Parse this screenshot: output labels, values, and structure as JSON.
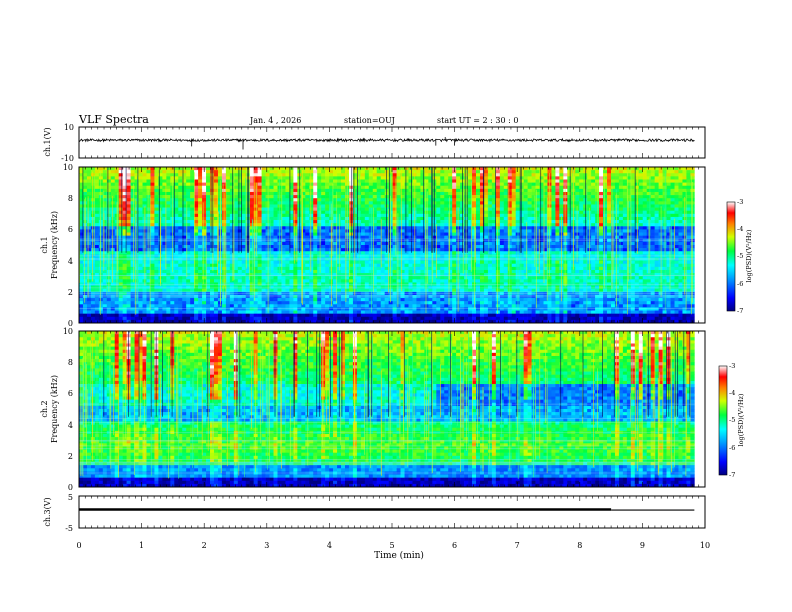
{
  "header": {
    "title": "VLF Spectra",
    "date": "Jan. 4 , 2026",
    "station": "station=OUJ",
    "start": "start UT =  2 : 30 : 0"
  },
  "chart_data": [
    {
      "type": "line",
      "name": "ch1-waveform",
      "ylabel": "ch.1(V)",
      "ylim": [
        -10,
        10
      ],
      "yticks": [
        "10",
        "-10"
      ],
      "baseline": 1.5,
      "spikes": [
        {
          "t": 1.8,
          "v": -2.5
        },
        {
          "t": 2.62,
          "v": -4.5
        },
        {
          "t": 4.55,
          "v": 3.0
        },
        {
          "t": 5.7,
          "v": -2.0
        },
        {
          "t": 5.85,
          "v": 3.5
        },
        {
          "t": 6.0,
          "v": -2.0
        }
      ]
    },
    {
      "type": "heatmap",
      "name": "ch1-spectrogram",
      "ylabel_line1": "ch.1",
      "ylabel_line2": "Frequency (kHz)",
      "ylim": [
        0,
        10
      ],
      "yticks": [
        "0",
        "2",
        "4",
        "6",
        "8",
        "10"
      ],
      "colorbar": {
        "label": "log(PSD)(V²/Hz)",
        "range": [
          -7,
          -3
        ],
        "ticks": [
          "-3",
          "-4",
          "-5",
          "-6",
          "-7"
        ]
      }
    },
    {
      "type": "heatmap",
      "name": "ch2-spectrogram",
      "ylabel_line1": "ch.2",
      "ylabel_line2": "Frequency (kHz)",
      "ylim": [
        0,
        10
      ],
      "yticks": [
        "0",
        "2",
        "4",
        "6",
        "8",
        "10"
      ],
      "colorbar": {
        "label": "log(PSD)(V²/Hz)",
        "range": [
          -7,
          -3
        ],
        "ticks": [
          "-3",
          "-4",
          "-5",
          "-6",
          "-7"
        ]
      }
    },
    {
      "type": "line",
      "name": "ch3-waveform",
      "ylabel": "ch.3(V)",
      "ylim": [
        -5,
        5
      ],
      "yticks": [
        "5",
        "-5"
      ],
      "segments": [
        {
          "t0": 0.0,
          "t1": 8.5,
          "v": 0.8
        },
        {
          "t0": 8.5,
          "t1": 9.83,
          "v": 0.6
        }
      ]
    }
  ],
  "xaxis": {
    "label": "Time (min)",
    "xlim": [
      0,
      10
    ],
    "ticks": [
      "0",
      "1",
      "2",
      "3",
      "4",
      "5",
      "6",
      "7",
      "8",
      "9",
      "10"
    ],
    "data_end": 9.83
  }
}
